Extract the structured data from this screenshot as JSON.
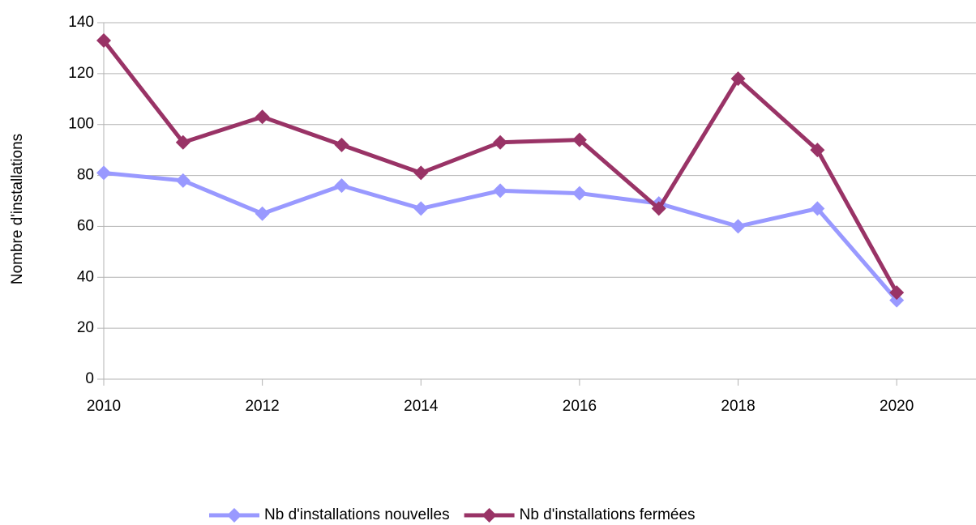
{
  "chart_data": {
    "type": "line",
    "y_label": "Nombre d'installations",
    "x": [
      2010,
      2011,
      2012,
      2013,
      2014,
      2015,
      2016,
      2017,
      2018,
      2019,
      2020
    ],
    "series": [
      {
        "name": "Nb d'installations nouvelles",
        "color": "#9999ff",
        "values": [
          81,
          78,
          65,
          76,
          67,
          74,
          73,
          69,
          60,
          67,
          31
        ]
      },
      {
        "name": "Nb d'installations fermées",
        "color": "#993366",
        "values": [
          133,
          93,
          103,
          92,
          81,
          93,
          94,
          67,
          118,
          90,
          34
        ]
      }
    ],
    "xlim": [
      2010,
      2021
    ],
    "xticks": [
      2010,
      2012,
      2014,
      2016,
      2018,
      2020
    ],
    "ylim": [
      0,
      140
    ],
    "yticks": [
      0,
      20,
      40,
      60,
      80,
      100,
      120,
      140
    ],
    "grid": true,
    "legend": "bottom"
  }
}
